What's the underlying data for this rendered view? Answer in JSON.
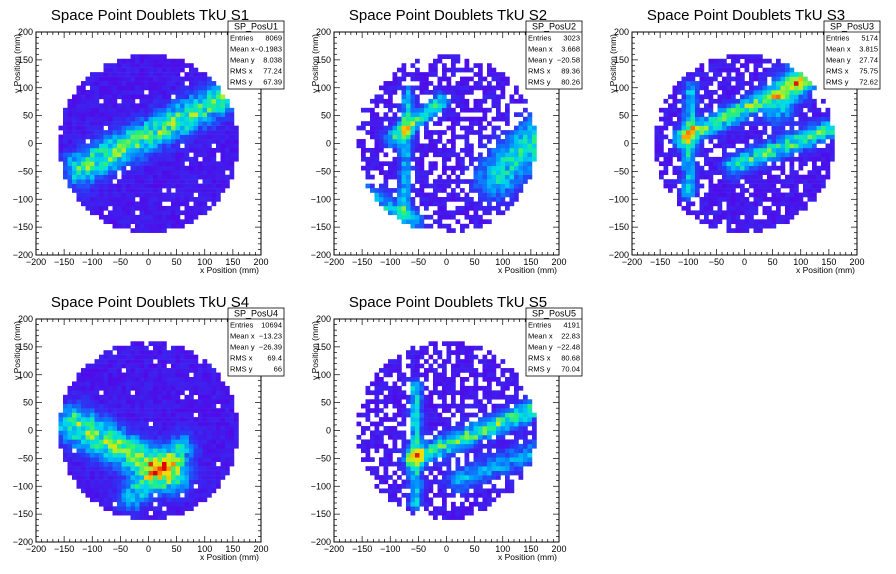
{
  "chart_data": [
    {
      "type": "heatmap",
      "title": "Space Point Doublets TkU S1",
      "xlabel": "x Position (mm)",
      "ylabel": "y Position (mm)",
      "xlim": [
        -200,
        200
      ],
      "ylim": [
        -200,
        200
      ],
      "x_ticks": [
        "−200",
        "−150",
        "−100",
        "−50",
        "0",
        "50",
        "100",
        "150",
        "200"
      ],
      "y_ticks": [
        "200",
        "150",
        "100",
        "50",
        "0",
        "−50",
        "−100",
        "−150",
        "−200"
      ],
      "stats": {
        "name": "SP_PosU1",
        "rows": [
          {
            "label": "Entries",
            "value": "8069"
          },
          {
            "label": "Mean x",
            "value": "−0.1983"
          },
          {
            "label": "Mean y",
            "value": "8.038"
          },
          {
            "label": "RMS x",
            "value": "77.24"
          },
          {
            "label": "RMS y",
            "value": "67.39"
          }
        ]
      },
      "circle_radius": 160,
      "hole_fraction": 0.04,
      "seed": 11,
      "tracks": [
        {
          "x1": -120,
          "y1": -45,
          "x2": 150,
          "y2": 90,
          "width": 20,
          "strength": 0.55
        }
      ]
    },
    {
      "type": "heatmap",
      "title": "Space Point Doublets TkU S2",
      "xlabel": "x Position (mm)",
      "ylabel": "y Position (mm)",
      "xlim": [
        -200,
        200
      ],
      "ylim": [
        -200,
        200
      ],
      "x_ticks": [
        "−200",
        "−150",
        "−100",
        "−50",
        "0",
        "50",
        "100",
        "150",
        "200"
      ],
      "y_ticks": [
        "200",
        "150",
        "100",
        "50",
        "0",
        "−50",
        "−100",
        "−150",
        "−200"
      ],
      "stats": {
        "name": "SP_PosU2",
        "rows": [
          {
            "label": "Entries",
            "value": "3023"
          },
          {
            "label": "Mean x",
            "value": "3.668"
          },
          {
            "label": "Mean y",
            "value": "−20.58"
          },
          {
            "label": "RMS x",
            "value": "89.36"
          },
          {
            "label": "RMS y",
            "value": "80.26"
          }
        ]
      },
      "circle_radius": 160,
      "hole_fraction": 0.38,
      "seed": 23,
      "tracks": [
        {
          "x1": -95,
          "y1": 10,
          "x2": -10,
          "y2": 75,
          "width": 10,
          "strength": 0.5
        },
        {
          "x1": -75,
          "y1": -120,
          "x2": -70,
          "y2": 90,
          "width": 8,
          "strength": 0.35
        },
        {
          "x1": 90,
          "y1": -60,
          "x2": 160,
          "y2": 10,
          "width": 26,
          "strength": 0.45
        },
        {
          "x1": -150,
          "y1": -90,
          "x2": -60,
          "y2": -140,
          "width": 14,
          "strength": 0.35
        }
      ]
    },
    {
      "type": "heatmap",
      "title": "Space Point Doublets TkU S3",
      "xlabel": "x Position (mm)",
      "ylabel": "y Position (mm)",
      "xlim": [
        -200,
        200
      ],
      "ylim": [
        -200,
        200
      ],
      "x_ticks": [
        "−200",
        "−150",
        "−100",
        "−50",
        "0",
        "50",
        "100",
        "150",
        "200"
      ],
      "y_ticks": [
        "200",
        "150",
        "100",
        "50",
        "0",
        "−50",
        "−100",
        "−150",
        "−200"
      ],
      "stats": {
        "name": "SP_PosU3",
        "rows": [
          {
            "label": "Entries",
            "value": "5174"
          },
          {
            "label": "Mean x",
            "value": "3.815"
          },
          {
            "label": "Mean y",
            "value": "27.74"
          },
          {
            "label": "RMS x",
            "value": "75.75"
          },
          {
            "label": "RMS y",
            "value": "72.62"
          }
        ]
      },
      "circle_radius": 160,
      "hole_fraction": 0.22,
      "seed": 37,
      "tracks": [
        {
          "x1": -110,
          "y1": 10,
          "x2": 140,
          "y2": 130,
          "width": 12,
          "strength": 0.55
        },
        {
          "x1": -20,
          "y1": -40,
          "x2": 160,
          "y2": 30,
          "width": 12,
          "strength": 0.5
        },
        {
          "x1": -100,
          "y1": -90,
          "x2": -95,
          "y2": 100,
          "width": 8,
          "strength": 0.4
        },
        {
          "x1": 60,
          "y1": 60,
          "x2": 100,
          "y2": 130,
          "width": 20,
          "strength": 0.3
        }
      ]
    },
    {
      "type": "heatmap",
      "title": "Space Point Doublets TkU S4",
      "xlabel": "x Position (mm)",
      "ylabel": "y Position (mm)",
      "xlim": [
        -200,
        200
      ],
      "ylim": [
        -200,
        200
      ],
      "x_ticks": [
        "−200",
        "−150",
        "−100",
        "−50",
        "0",
        "50",
        "100",
        "150",
        "200"
      ],
      "y_ticks": [
        "200",
        "150",
        "100",
        "50",
        "0",
        "−50",
        "−100",
        "−150",
        "−200"
      ],
      "stats": {
        "name": "SP_PosU4",
        "rows": [
          {
            "label": "Entries",
            "value": "10694"
          },
          {
            "label": "Mean x",
            "value": "−13.23"
          },
          {
            "label": "Mean y",
            "value": "−26.39"
          },
          {
            "label": "RMS x",
            "value": "69.4"
          },
          {
            "label": "RMS y",
            "value": "66"
          }
        ]
      },
      "circle_radius": 160,
      "hole_fraction": 0.03,
      "seed": 51,
      "tracks": [
        {
          "x1": -130,
          "y1": 10,
          "x2": 40,
          "y2": -80,
          "width": 22,
          "strength": 0.6
        },
        {
          "x1": -30,
          "y1": -120,
          "x2": 60,
          "y2": -30,
          "width": 16,
          "strength": 0.4
        }
      ]
    },
    {
      "type": "heatmap",
      "title": "Space Point Doublets TkU S5",
      "xlabel": "x Position (mm)",
      "ylabel": "y Position (mm)",
      "xlim": [
        -200,
        200
      ],
      "ylim": [
        -200,
        200
      ],
      "x_ticks": [
        "−200",
        "−150",
        "−100",
        "−50",
        "0",
        "50",
        "100",
        "150",
        "200"
      ],
      "y_ticks": [
        "200",
        "150",
        "100",
        "50",
        "0",
        "−50",
        "−100",
        "−150",
        "−200"
      ],
      "stats": {
        "name": "SP_PosU5",
        "rows": [
          {
            "label": "Entries",
            "value": "4191"
          },
          {
            "label": "Mean x",
            "value": "22.83"
          },
          {
            "label": "Mean y",
            "value": "−22.48"
          },
          {
            "label": "RMS x",
            "value": "80.68"
          },
          {
            "label": "RMS y",
            "value": "70.04"
          }
        ]
      },
      "circle_radius": 160,
      "hole_fraction": 0.3,
      "seed": 67,
      "tracks": [
        {
          "x1": -60,
          "y1": -50,
          "x2": 160,
          "y2": 40,
          "width": 12,
          "strength": 0.55
        },
        {
          "x1": -55,
          "y1": -130,
          "x2": -55,
          "y2": 80,
          "width": 8,
          "strength": 0.4
        },
        {
          "x1": 20,
          "y1": -90,
          "x2": 150,
          "y2": -40,
          "width": 14,
          "strength": 0.3
        }
      ]
    }
  ]
}
